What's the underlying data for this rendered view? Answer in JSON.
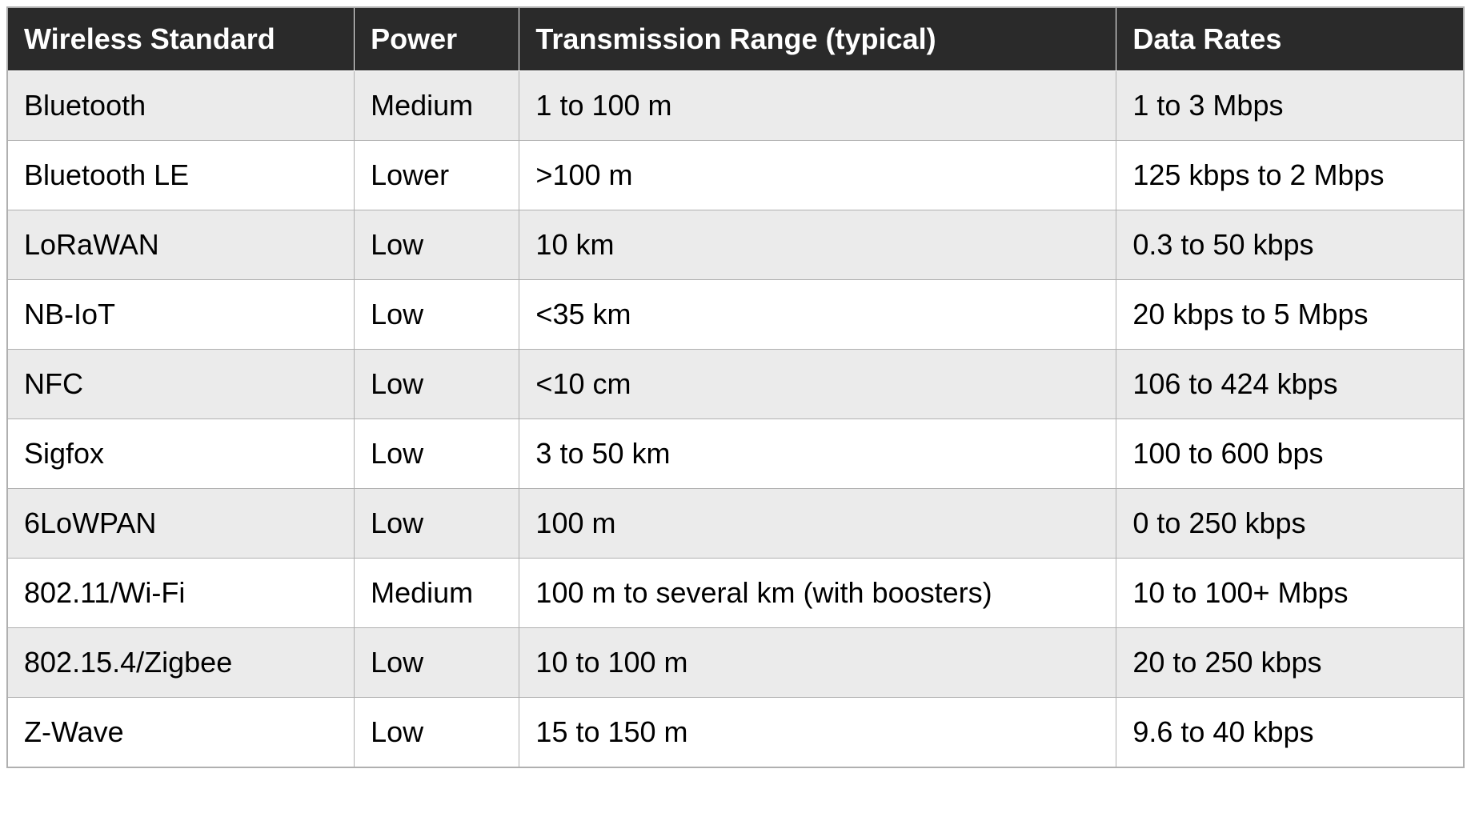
{
  "table": {
    "type": "table",
    "header_bg_color": "#2a2a2a",
    "header_text_color": "#ffffff",
    "row_odd_bg_color": "#ebebeb",
    "row_even_bg_color": "#ffffff",
    "border_color": "#b0b0b0",
    "cell_text_color": "#000000",
    "header_fontsize": 36,
    "cell_fontsize": 36,
    "header_font_weight": "bold",
    "columns": [
      "Wireless Standard",
      "Power",
      "Transmission Range (typical)",
      "Data Rates"
    ],
    "rows": [
      [
        "Bluetooth",
        "Medium",
        "1 to 100 m",
        "1 to 3 Mbps"
      ],
      [
        "Bluetooth LE",
        "Lower",
        ">100 m",
        "125 kbps to 2 Mbps"
      ],
      [
        "LoRaWAN",
        "Low",
        "10 km",
        "0.3 to 50 kbps"
      ],
      [
        "NB-IoT",
        "Low",
        "<35 km",
        "20 kbps to 5 Mbps"
      ],
      [
        "NFC",
        "Low",
        "<10 cm",
        "106 to 424 kbps"
      ],
      [
        "Sigfox",
        "Low",
        "3 to 50 km",
        "100 to 600 bps"
      ],
      [
        "6LoWPAN",
        "Low",
        "100 m",
        "0 to 250 kbps"
      ],
      [
        "802.11/Wi-Fi",
        "Medium",
        "100 m to several km (with boosters)",
        "10 to 100+ Mbps"
      ],
      [
        "802.15.4/Zigbee",
        "Low",
        "10 to 100 m",
        "20 to 250 kbps"
      ],
      [
        "Z-Wave",
        "Low",
        "15 to 150 m",
        "9.6 to 40 kbps"
      ]
    ]
  }
}
